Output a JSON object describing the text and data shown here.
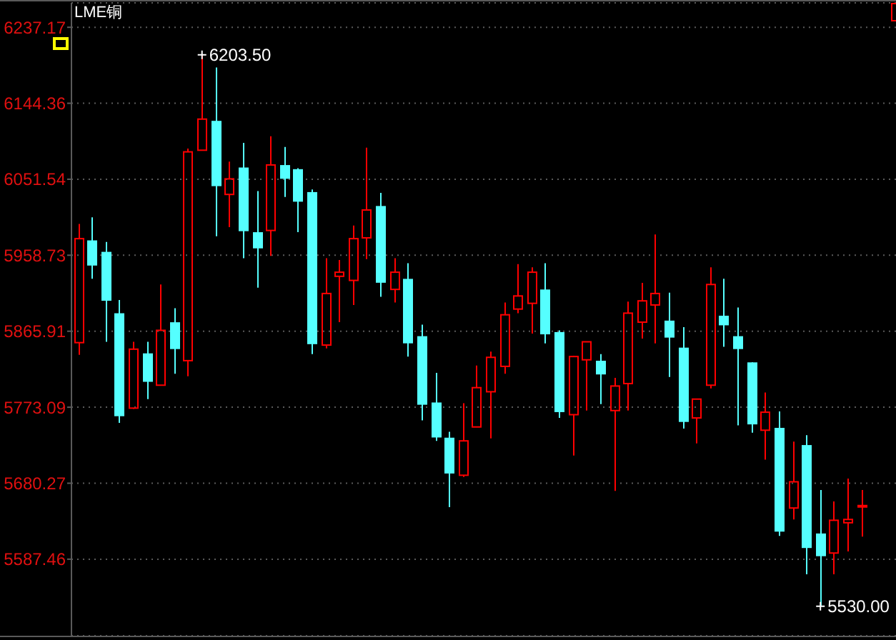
{
  "chart_data": {
    "type": "candlestick",
    "title": "LME铜",
    "categories": [
      null,
      null,
      null,
      null,
      null,
      null,
      null,
      null,
      null,
      null,
      null,
      null,
      null,
      null,
      null,
      null,
      null,
      null,
      null,
      null,
      null,
      null,
      null,
      null,
      null,
      null,
      null,
      null,
      null,
      null,
      null,
      null,
      null,
      null,
      null,
      null,
      null,
      null,
      null,
      null,
      null,
      null,
      null,
      null,
      null,
      null,
      null,
      null,
      null,
      null,
      null,
      null,
      null,
      null,
      null,
      null,
      null,
      null,
      null,
      null
    ],
    "ohlc": [
      [
        5852,
        5997,
        5837,
        5979
      ],
      [
        5976,
        6005,
        5930,
        5947
      ],
      [
        5962,
        5975,
        5853,
        5904
      ],
      [
        5887,
        5904,
        5754,
        5763
      ],
      [
        5772,
        5853,
        5771,
        5844
      ],
      [
        5838,
        5853,
        5783,
        5805
      ],
      [
        5800,
        5923,
        5800,
        5867
      ],
      [
        5876,
        5894,
        5814,
        5845
      ],
      [
        5830,
        6089,
        5811,
        6085
      ],
      [
        6087,
        6203.5,
        6087,
        6125
      ],
      [
        6122,
        6188,
        5982,
        6044
      ],
      [
        6033,
        6073,
        5993,
        6052
      ],
      [
        6065,
        6096,
        5955,
        5989
      ],
      [
        5986,
        6037,
        5919,
        5968
      ],
      [
        5989,
        6104,
        5958,
        6069
      ],
      [
        6068,
        6091,
        6030,
        6053
      ],
      [
        6063,
        6065,
        5987,
        6025
      ],
      [
        6035,
        6039,
        5838,
        5851
      ],
      [
        5849,
        5955,
        5845,
        5912
      ],
      [
        5933,
        5953,
        5877,
        5938
      ],
      [
        5928,
        5995,
        5898,
        5979
      ],
      [
        5980,
        6090,
        5954,
        6014
      ],
      [
        6018,
        6035,
        5908,
        5926
      ],
      [
        5917,
        5955,
        5901,
        5938
      ],
      [
        5929,
        5949,
        5835,
        5852
      ],
      [
        5859,
        5874,
        5757,
        5777
      ],
      [
        5778,
        5815,
        5732,
        5737
      ],
      [
        5735,
        5743,
        5651,
        5693
      ],
      [
        5690,
        5778,
        5688,
        5732
      ],
      [
        5749,
        5824,
        5749,
        5797
      ],
      [
        5792,
        5841,
        5735,
        5834
      ],
      [
        5823,
        5901,
        5814,
        5886
      ],
      [
        5893,
        5948,
        5888,
        5909
      ],
      [
        5900,
        5944,
        5863,
        5938
      ],
      [
        5916,
        5949,
        5851,
        5863
      ],
      [
        5864,
        5867,
        5760,
        5768
      ],
      [
        5764,
        5836,
        5714,
        5835
      ],
      [
        5831,
        5853,
        5769,
        5853
      ],
      [
        5829,
        5838,
        5777,
        5814
      ],
      [
        5769,
        5809,
        5671,
        5799
      ],
      [
        5802,
        5902,
        5769,
        5888
      ],
      [
        5877,
        5925,
        5857,
        5903
      ],
      [
        5898,
        5984,
        5851,
        5912
      ],
      [
        5878,
        5913,
        5810,
        5859
      ],
      [
        5845,
        5871,
        5747,
        5756
      ],
      [
        5760,
        5783,
        5729,
        5783
      ],
      [
        5800,
        5944,
        5796,
        5923
      ],
      [
        5884,
        5930,
        5847,
        5874
      ],
      [
        5859,
        5895,
        5751,
        5845
      ],
      [
        5827,
        5828,
        5742,
        5753
      ],
      [
        5745,
        5791,
        5709,
        5767
      ],
      [
        5747,
        5768,
        5616,
        5622
      ],
      [
        5650,
        5731,
        5636,
        5682
      ],
      [
        5726,
        5739,
        5569,
        5602
      ],
      [
        5618,
        5672,
        5530,
        5592
      ],
      [
        5595,
        5658,
        5569,
        5635
      ],
      [
        5632,
        5686,
        5597,
        5636
      ],
      [
        5653,
        5672,
        5615,
        5653
      ],
      null,
      null
    ],
    "colors": [
      "#ff0000",
      "#55ffff",
      "#55ffff",
      "#55ffff",
      "#ff0000",
      "#55ffff",
      "#ff0000",
      "#55ffff",
      "#ff0000",
      "#ff0000",
      "#55ffff",
      "#ff0000",
      "#55ffff",
      "#55ffff",
      "#ff0000",
      "#55ffff",
      "#55ffff",
      "#55ffff",
      "#ff0000",
      "#ff0000",
      "#ff0000",
      "#ff0000",
      "#55ffff",
      "#ff0000",
      "#55ffff",
      "#55ffff",
      "#55ffff",
      "#55ffff",
      "#ff0000",
      "#ff0000",
      "#ff0000",
      "#ff0000",
      "#ff0000",
      "#ff0000",
      "#55ffff",
      "#55ffff",
      "#ff0000",
      "#ff0000",
      "#55ffff",
      "#ff0000",
      "#ff0000",
      "#ff0000",
      "#ff0000",
      "#55ffff",
      "#55ffff",
      "#ff0000",
      "#ff0000",
      "#55ffff",
      "#55ffff",
      "#55ffff",
      "#ff0000",
      "#55ffff",
      "#ff0000",
      "#55ffff",
      "#55ffff",
      "#ff0000",
      "#ff0000",
      "#ff0000",
      null,
      null
    ],
    "ylim": [
      5494,
      6267
    ],
    "yticks": [
      5587.46,
      5680.27,
      5773.09,
      5865.91,
      5958.73,
      6051.54,
      6144.36,
      6237.17
    ],
    "grid": "y",
    "tick_labels": "y",
    "annotations": [
      "6203.50",
      "5530.00"
    ]
  }
}
